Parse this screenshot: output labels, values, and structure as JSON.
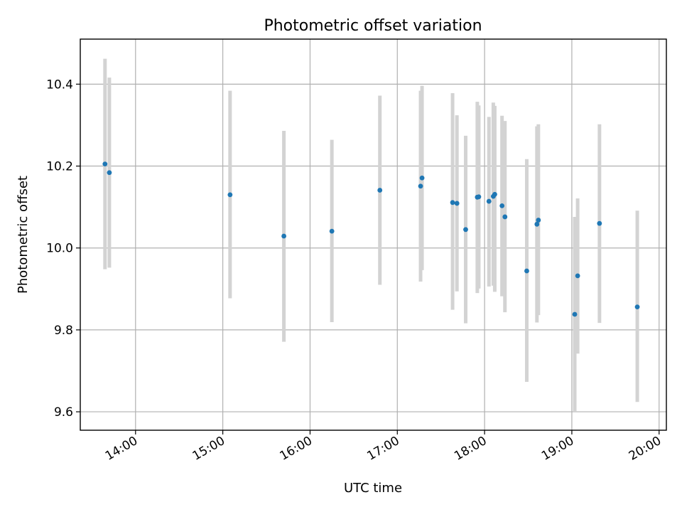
{
  "chart_data": {
    "type": "scatter",
    "title": "Photometric offset variation",
    "xlabel": "UTC time",
    "ylabel": "Photometric offset",
    "x_range": [
      "13:22",
      "20:05"
    ],
    "ylim": [
      9.555,
      10.51
    ],
    "grid": true,
    "point_color": "#1f77b4",
    "errorbar_color": "#d3d3d3",
    "x_ticks": [
      "14:00",
      "15:00",
      "16:00",
      "17:00",
      "18:00",
      "19:00",
      "20:00"
    ],
    "y_ticks": [
      "9.6",
      "9.8",
      "10.0",
      "10.2",
      "10.4"
    ],
    "points": [
      {
        "time": "13:39",
        "y": 10.205,
        "ylow": 9.948,
        "yhigh": 10.462
      },
      {
        "time": "13:42",
        "y": 10.184,
        "ylow": 9.952,
        "yhigh": 10.416
      },
      {
        "time": "15:05",
        "y": 10.13,
        "ylow": 9.877,
        "yhigh": 10.384
      },
      {
        "time": "15:42",
        "y": 10.029,
        "ylow": 9.771,
        "yhigh": 10.286
      },
      {
        "time": "16:15",
        "y": 10.041,
        "ylow": 9.819,
        "yhigh": 10.264
      },
      {
        "time": "16:48",
        "y": 10.141,
        "ylow": 9.91,
        "yhigh": 10.372
      },
      {
        "time": "17:16",
        "y": 10.151,
        "ylow": 9.918,
        "yhigh": 10.384
      },
      {
        "time": "17:17",
        "y": 10.171,
        "ylow": 9.946,
        "yhigh": 10.396
      },
      {
        "time": "17:38",
        "y": 10.111,
        "ylow": 9.849,
        "yhigh": 10.378
      },
      {
        "time": "17:41",
        "y": 10.109,
        "ylow": 9.894,
        "yhigh": 10.324
      },
      {
        "time": "17:47",
        "y": 10.045,
        "ylow": 9.816,
        "yhigh": 10.274
      },
      {
        "time": "17:55",
        "y": 10.124,
        "ylow": 9.89,
        "yhigh": 10.357
      },
      {
        "time": "17:56",
        "y": 10.125,
        "ylow": 9.901,
        "yhigh": 10.348
      },
      {
        "time": "18:03",
        "y": 10.114,
        "ylow": 9.906,
        "yhigh": 10.32
      },
      {
        "time": "18:06",
        "y": 10.126,
        "ylow": 9.908,
        "yhigh": 10.355
      },
      {
        "time": "18:07",
        "y": 10.131,
        "ylow": 9.893,
        "yhigh": 10.347
      },
      {
        "time": "18:12",
        "y": 10.103,
        "ylow": 9.882,
        "yhigh": 10.323
      },
      {
        "time": "18:14",
        "y": 10.076,
        "ylow": 9.843,
        "yhigh": 10.31
      },
      {
        "time": "18:29",
        "y": 9.944,
        "ylow": 9.673,
        "yhigh": 10.217
      },
      {
        "time": "18:36",
        "y": 10.058,
        "ylow": 9.818,
        "yhigh": 10.297
      },
      {
        "time": "18:37",
        "y": 10.068,
        "ylow": 9.836,
        "yhigh": 10.302
      },
      {
        "time": "19:02",
        "y": 9.838,
        "ylow": 9.6,
        "yhigh": 10.076
      },
      {
        "time": "19:04",
        "y": 9.932,
        "ylow": 9.742,
        "yhigh": 10.121
      },
      {
        "time": "19:19",
        "y": 10.06,
        "ylow": 9.817,
        "yhigh": 10.302
      },
      {
        "time": "19:45",
        "y": 9.856,
        "ylow": 9.624,
        "yhigh": 10.091
      }
    ]
  }
}
